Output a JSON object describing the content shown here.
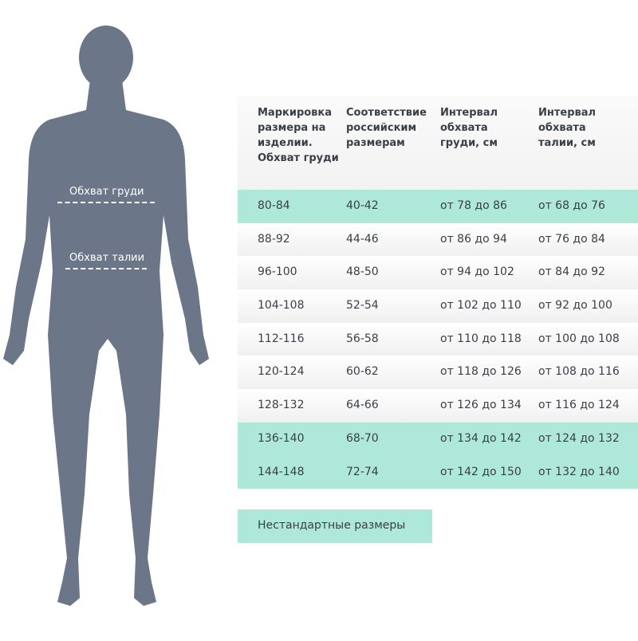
{
  "figure": {
    "chest_label": "Обхват груди",
    "waist_label": "Обхват талии",
    "silhouette_color": "#6b7789"
  },
  "table": {
    "headers": [
      "Маркировка размера на изделии. Обхват груди",
      "Соответствие российским размерам",
      "Интервал обхвата груди, см",
      "Интервал обхвата талии, см"
    ],
    "highlight_color": "#ade8d8",
    "rows": [
      {
        "cells": [
          "80-84",
          "40-42",
          "от 78 до 86",
          "от 68 до 76"
        ],
        "nonstandard": true
      },
      {
        "cells": [
          "88-92",
          "44-46",
          "от 86 до 94",
          "от 76 до 84"
        ],
        "nonstandard": false
      },
      {
        "cells": [
          "96-100",
          "48-50",
          "от 94 до 102",
          "от 84 до 92"
        ],
        "nonstandard": false
      },
      {
        "cells": [
          "104-108",
          "52-54",
          "от 102 до 110",
          "от 92 до 100"
        ],
        "nonstandard": false
      },
      {
        "cells": [
          "112-116",
          "56-58",
          "от 110 до 118",
          "от 100 до 108"
        ],
        "nonstandard": false
      },
      {
        "cells": [
          "120-124",
          "60-62",
          "от 118 до 126",
          "от 108 до 116"
        ],
        "nonstandard": false
      },
      {
        "cells": [
          "128-132",
          "64-66",
          "от 126 до 134",
          "от 116 до 124"
        ],
        "nonstandard": false
      },
      {
        "cells": [
          "136-140",
          "68-70",
          "от 134 до 142",
          "от 124 до 132"
        ],
        "nonstandard": true
      },
      {
        "cells": [
          "144-148",
          "72-74",
          "от 142 до 150",
          "от 132 до 140"
        ],
        "nonstandard": true
      }
    ]
  },
  "legend": {
    "label": "Нестандартные размеры"
  }
}
